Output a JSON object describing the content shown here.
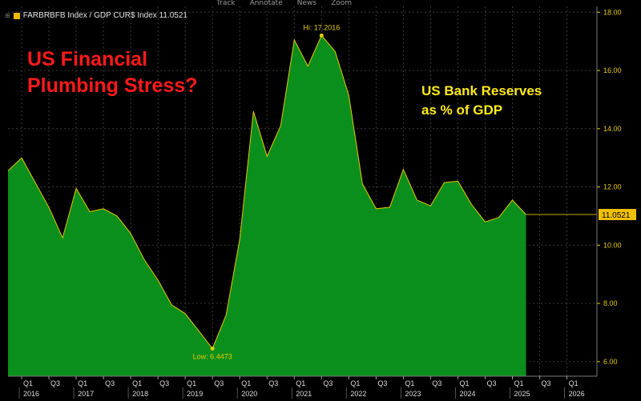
{
  "toolbar": [
    "Track",
    "Annotate",
    "News",
    "Zoom"
  ],
  "series_label": "FARBRBFB Index / GDP CUR$ Index 11.0521",
  "title": "US Financial Plumbing Stress?",
  "title_lines": [
    "US Financial",
    "Plumbing Stress?"
  ],
  "subtitle_lines": [
    "US Bank Reserves",
    "as % of GDP"
  ],
  "colors": {
    "fill": "#0b8f1c",
    "line": "#e8c800",
    "grid": "#3a3a3a",
    "axis_text": "#e8c800",
    "title": "#ff1a1a",
    "subtitle": "#ffeb1a",
    "background": "#000000"
  },
  "chart_data": {
    "type": "area",
    "series": [
      {
        "name": "FARBRBFB Index / GDP CUR$ Index",
        "last_value": "11.0521",
        "x": [
          2015.75,
          2016.0,
          2016.25,
          2016.5,
          2016.75,
          2017.0,
          2017.25,
          2017.5,
          2017.75,
          2018.0,
          2018.25,
          2018.5,
          2018.75,
          2019.0,
          2019.25,
          2019.5,
          2019.75,
          2020.0,
          2020.25,
          2020.5,
          2020.75,
          2021.0,
          2021.25,
          2021.5,
          2021.75,
          2022.0,
          2022.25,
          2022.5,
          2022.75,
          2023.0,
          2023.25,
          2023.5,
          2023.75,
          2024.0,
          2024.25,
          2024.5,
          2024.75,
          2025.0,
          2025.25
        ],
        "values": [
          12.55,
          13.0,
          12.15,
          11.3,
          10.25,
          11.95,
          11.15,
          11.25,
          11.0,
          10.4,
          9.5,
          8.8,
          7.95,
          7.65,
          7.05,
          6.4473,
          7.6,
          10.2,
          14.6,
          13.05,
          14.1,
          17.05,
          16.15,
          17.2016,
          16.65,
          15.15,
          12.1,
          11.25,
          11.3,
          12.6,
          11.55,
          11.35,
          12.15,
          12.2,
          11.4,
          10.8,
          10.95,
          11.55,
          11.0521
        ]
      }
    ],
    "annotations": [
      {
        "text": "Hi: 17.2016",
        "x": 2021.5,
        "y": 17.2016
      },
      {
        "text": "Low: 6.4473",
        "x": 2019.5,
        "y": 6.4473
      }
    ],
    "last_value_label": "11.0521",
    "ylim": [
      5.5,
      18.2
    ],
    "yticks": [
      6,
      8,
      10,
      12,
      14,
      16,
      18
    ],
    "ytick_labels": [
      "6.00",
      "8.00",
      "10.00",
      "12.00",
      "14.00",
      "16.00",
      "18.00"
    ],
    "xlim": [
      2015.75,
      2026.55
    ],
    "quarter_ticks": [
      {
        "label": "Q1",
        "x": 2016.0
      },
      {
        "label": "Q3",
        "x": 2016.5
      },
      {
        "label": "Q1",
        "x": 2017.0
      },
      {
        "label": "Q3",
        "x": 2017.5
      },
      {
        "label": "Q1",
        "x": 2018.0
      },
      {
        "label": "Q3",
        "x": 2018.5
      },
      {
        "label": "Q1",
        "x": 2019.0
      },
      {
        "label": "Q3",
        "x": 2019.5
      },
      {
        "label": "Q1",
        "x": 2020.0
      },
      {
        "label": "Q3",
        "x": 2020.5
      },
      {
        "label": "Q1",
        "x": 2021.0
      },
      {
        "label": "Q3",
        "x": 2021.5
      },
      {
        "label": "Q1",
        "x": 2022.0
      },
      {
        "label": "Q3",
        "x": 2022.5
      },
      {
        "label": "Q1",
        "x": 2023.0
      },
      {
        "label": "Q3",
        "x": 2023.5
      },
      {
        "label": "Q1",
        "x": 2024.0
      },
      {
        "label": "Q3",
        "x": 2024.5
      },
      {
        "label": "Q1",
        "x": 2025.0
      },
      {
        "label": "Q3",
        "x": 2025.5
      },
      {
        "label": "Q1",
        "x": 2026.0
      }
    ],
    "years": [
      "2016",
      "2017",
      "2018",
      "2019",
      "2020",
      "2021",
      "2022",
      "2023",
      "2024",
      "2025",
      "2026"
    ],
    "grid": true,
    "legend": "top-left"
  }
}
